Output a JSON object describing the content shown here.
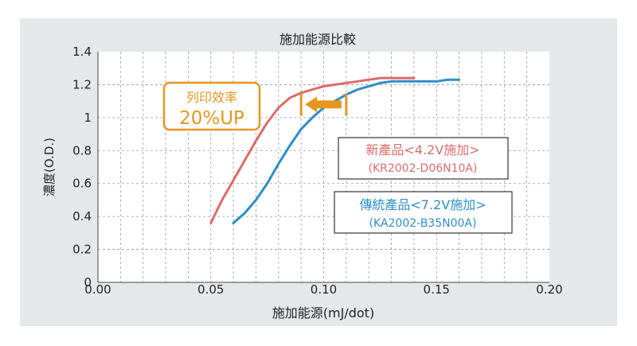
{
  "chart_data": {
    "type": "line",
    "title": "施加能源比較",
    "xlabel": "施加能源(mJ/dot)",
    "ylabel": "濃度(O.D.)",
    "xlim": [
      0,
      0.2
    ],
    "ylim": [
      0,
      1.4
    ],
    "x_ticks": [
      "0.00",
      "0.05",
      "0.10",
      "0.15",
      "0.20"
    ],
    "y_ticks": [
      "0",
      "0.2",
      "0.4",
      "0.6",
      "0.8",
      "1",
      "1.2",
      "1.4"
    ],
    "grid": true,
    "series": [
      {
        "name": "新產品<4.2V施加>",
        "model": "(KR2002-D06N10A)",
        "color": "#e06a6a",
        "x": [
          0.05,
          0.055,
          0.06,
          0.065,
          0.07,
          0.075,
          0.08,
          0.085,
          0.09,
          0.095,
          0.1,
          0.105,
          0.11,
          0.115,
          0.12,
          0.125,
          0.13,
          0.135,
          0.14
        ],
        "y": [
          0.36,
          0.5,
          0.62,
          0.74,
          0.86,
          0.97,
          1.06,
          1.12,
          1.15,
          1.17,
          1.19,
          1.2,
          1.21,
          1.22,
          1.23,
          1.24,
          1.24,
          1.24,
          1.24
        ]
      },
      {
        "name": "傳統產品<7.2V施加>",
        "model": "(KA2002-B35N00A)",
        "color": "#2a8fc8",
        "x": [
          0.06,
          0.065,
          0.07,
          0.075,
          0.08,
          0.085,
          0.09,
          0.095,
          0.1,
          0.105,
          0.11,
          0.115,
          0.12,
          0.125,
          0.13,
          0.135,
          0.14,
          0.145,
          0.15,
          0.155,
          0.16
        ],
        "y": [
          0.36,
          0.42,
          0.5,
          0.6,
          0.72,
          0.83,
          0.93,
          1.0,
          1.06,
          1.1,
          1.14,
          1.17,
          1.19,
          1.21,
          1.22,
          1.22,
          1.22,
          1.22,
          1.22,
          1.23,
          1.23
        ]
      }
    ],
    "annotation": {
      "line1": "列印效率",
      "line2": "20%UP",
      "color": "#e8951e",
      "arrow_from_x": 0.11,
      "arrow_to_x": 0.09,
      "arrow_y": 1.08
    }
  }
}
